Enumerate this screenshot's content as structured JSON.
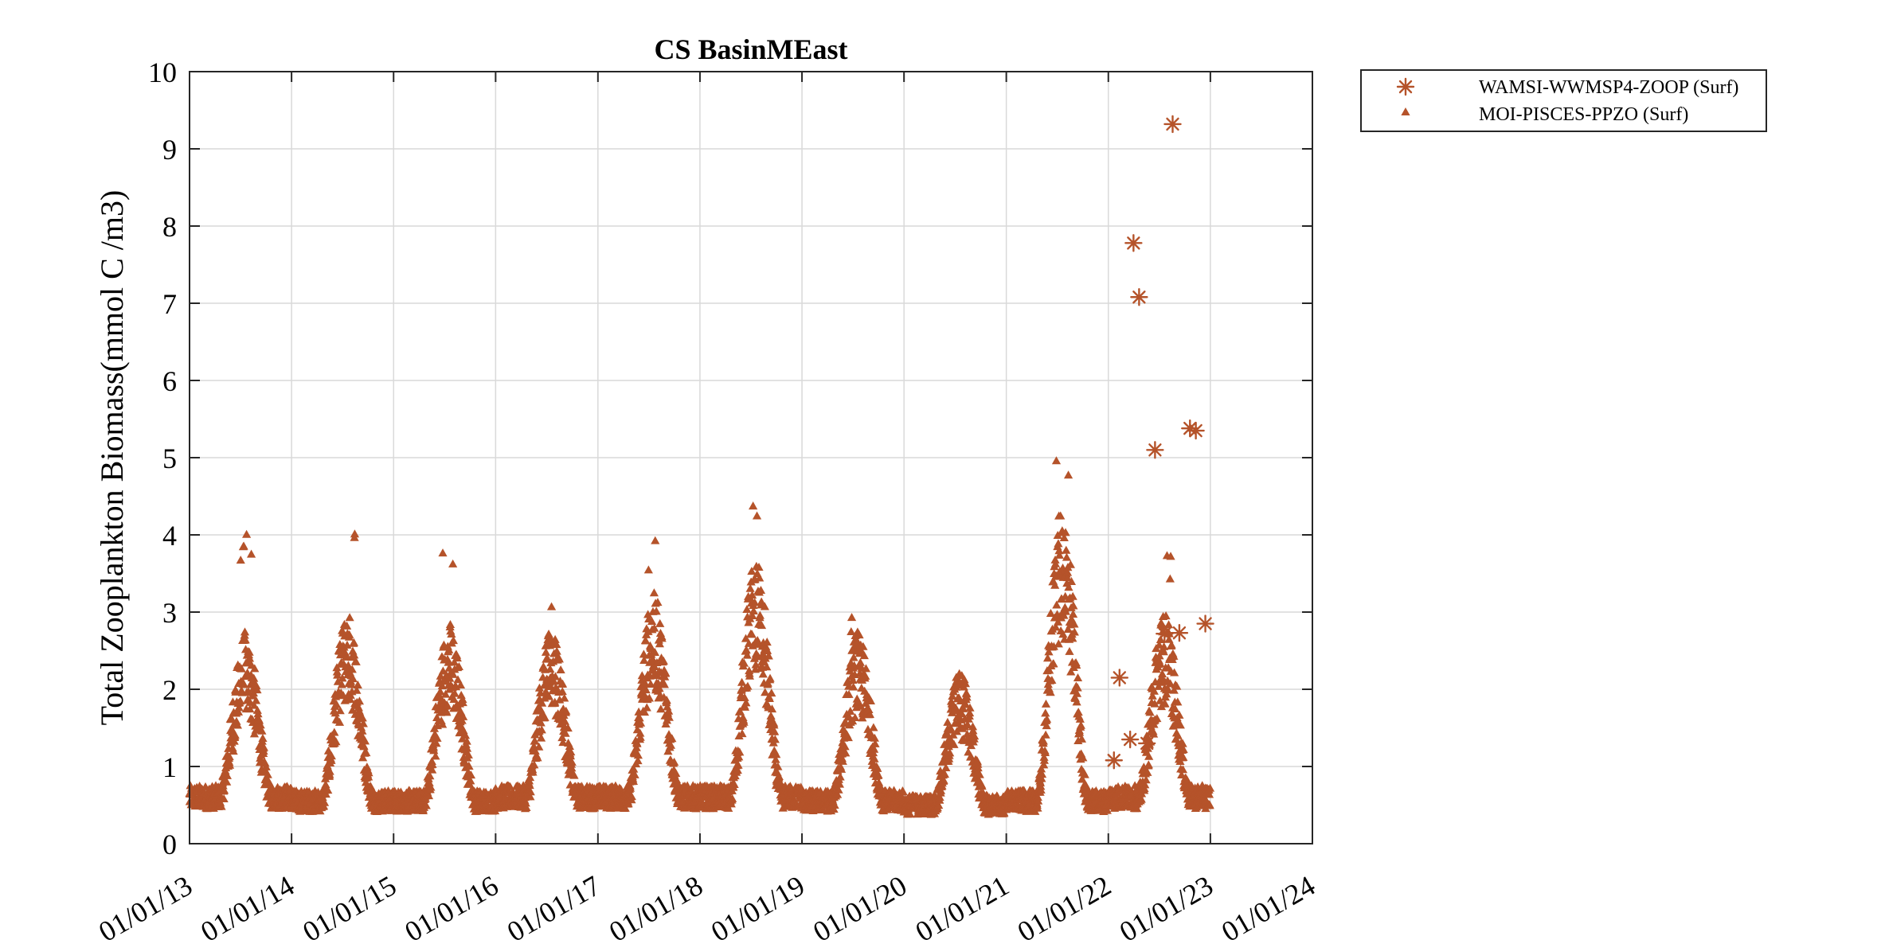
{
  "chart_data": {
    "type": "scatter",
    "title": "CS BasinMEast",
    "ylabel": "Total Zooplankton Biomass(mmol C /m3)",
    "xlabel": "",
    "ylim": [
      0,
      10
    ],
    "xlim": [
      "2013-01-01",
      "2024-01-01"
    ],
    "yticks": [
      "0",
      "1",
      "2",
      "3",
      "4",
      "5",
      "6",
      "7",
      "8",
      "9",
      "10"
    ],
    "xticks": [
      "01/01/13",
      "01/01/14",
      "01/01/15",
      "01/01/16",
      "01/01/17",
      "01/01/18",
      "01/01/19",
      "01/01/20",
      "01/01/21",
      "01/01/22",
      "01/01/23",
      "01/01/24"
    ],
    "grid": true,
    "legend_position": "outside-top-right",
    "color": "#B5532A",
    "series": [
      {
        "name": "WAMSI-WWMSP4-ZOOP (Surf)",
        "marker": "asterisk",
        "points": [
          {
            "x": "2022-01-21",
            "y": 1.08
          },
          {
            "x": "2022-02-10",
            "y": 2.15
          },
          {
            "x": "2022-03-20",
            "y": 1.35
          },
          {
            "x": "2022-04-01",
            "y": 7.78
          },
          {
            "x": "2022-04-21",
            "y": 7.08
          },
          {
            "x": "2022-05-19",
            "y": 1.3
          },
          {
            "x": "2022-06-17",
            "y": 5.1
          },
          {
            "x": "2022-07-21",
            "y": 2.72
          },
          {
            "x": "2022-08-19",
            "y": 9.32
          },
          {
            "x": "2022-09-12",
            "y": 2.73
          },
          {
            "x": "2022-10-20",
            "y": 5.38
          },
          {
            "x": "2022-11-10",
            "y": 5.35
          },
          {
            "x": "2022-12-14",
            "y": 2.85
          }
        ]
      },
      {
        "name": "MOI-PISCES-PPZO (Surf)",
        "marker": "triangle",
        "seasonal_profile": {
          "start": "2013-01-01",
          "end": "2022-12-31",
          "step_days": 1,
          "description_years": [
            2013,
            2014,
            2015,
            2016,
            2017,
            2018,
            2019,
            2020,
            2021,
            2022
          ],
          "annual_minimum": [
            0.6,
            0.55,
            0.55,
            0.6,
            0.6,
            0.6,
            0.55,
            0.5,
            0.55,
            0.6
          ],
          "annual_peak": [
            2.2,
            2.4,
            2.3,
            2.3,
            2.6,
            3.0,
            2.2,
            1.8,
            3.5,
            2.4
          ],
          "annual_maximum": [
            4.22,
            4.3,
            3.85,
            3.18,
            4.15,
            4.42,
            3.1,
            3.65,
            5.32,
            3.9
          ]
        }
      }
    ]
  }
}
